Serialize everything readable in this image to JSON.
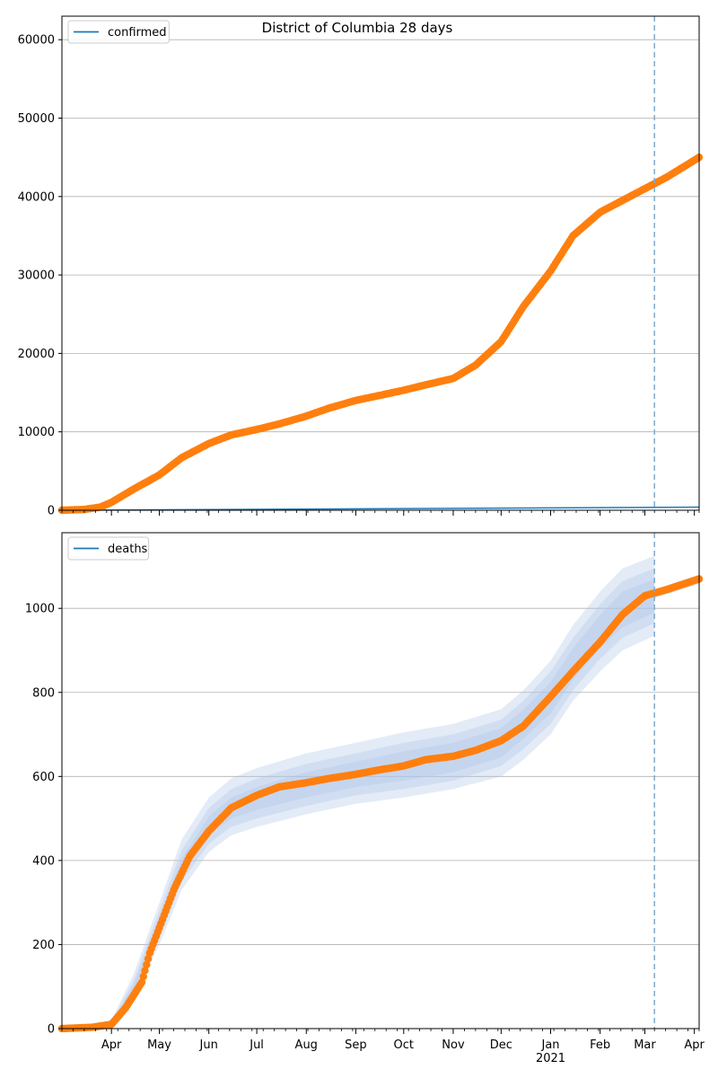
{
  "figure": {
    "title": "District of Columbia 28 days"
  },
  "colors": {
    "observed": "#ff7f0e",
    "model_line": "#1f77b4",
    "band": "#aec7e8",
    "grid": "#b0b0b0",
    "vline": "#7fa9cc"
  },
  "x_axis": {
    "range": [
      "2020-03-01",
      "2021-04-04"
    ],
    "month_ticks": [
      {
        "date": "2020-04-01",
        "label": "Apr",
        "sublabel": ""
      },
      {
        "date": "2020-05-01",
        "label": "May",
        "sublabel": ""
      },
      {
        "date": "2020-06-01",
        "label": "Jun",
        "sublabel": ""
      },
      {
        "date": "2020-07-01",
        "label": "Jul",
        "sublabel": ""
      },
      {
        "date": "2020-08-01",
        "label": "Aug",
        "sublabel": ""
      },
      {
        "date": "2020-09-01",
        "label": "Sep",
        "sublabel": ""
      },
      {
        "date": "2020-10-01",
        "label": "Oct",
        "sublabel": ""
      },
      {
        "date": "2020-11-01",
        "label": "Nov",
        "sublabel": ""
      },
      {
        "date": "2020-12-01",
        "label": "Dec",
        "sublabel": ""
      },
      {
        "date": "2021-01-01",
        "label": "Jan",
        "sublabel": "2021"
      },
      {
        "date": "2021-02-01",
        "label": "Feb",
        "sublabel": ""
      },
      {
        "date": "2021-03-01",
        "label": "Mar",
        "sublabel": ""
      },
      {
        "date": "2021-04-01",
        "label": "Apr",
        "sublabel": ""
      }
    ],
    "forecast_start": "2021-03-07"
  },
  "chart_data": [
    {
      "type": "line",
      "legend": "confirmed",
      "legend_position": "upper-left",
      "grid_y": true,
      "ylim": [
        0,
        63000
      ],
      "yticks": [
        "0",
        "10000",
        "20000",
        "30000",
        "40000",
        "50000",
        "60000"
      ],
      "ytick_values": [
        0,
        10000,
        20000,
        30000,
        40000,
        50000,
        60000
      ],
      "observed": {
        "x": [
          "2020-03-01",
          "2020-03-15",
          "2020-03-25",
          "2020-04-01",
          "2020-04-15",
          "2020-05-01",
          "2020-05-15",
          "2020-06-01",
          "2020-06-15",
          "2020-07-01",
          "2020-07-15",
          "2020-08-01",
          "2020-08-15",
          "2020-09-01",
          "2020-09-15",
          "2020-10-01",
          "2020-10-15",
          "2020-11-01",
          "2020-11-15",
          "2020-12-01",
          "2020-12-15",
          "2021-01-01",
          "2021-01-15",
          "2021-02-01",
          "2021-02-15",
          "2021-03-01",
          "2021-03-15",
          "2021-04-04"
        ],
        "y": [
          0,
          100,
          400,
          1000,
          2700,
          4500,
          6700,
          8500,
          9600,
          10300,
          11000,
          12000,
          13000,
          14000,
          14600,
          15300,
          16000,
          16800,
          18500,
          21500,
          26000,
          30500,
          35000,
          38000,
          39500,
          41000,
          42500,
          45000
        ]
      },
      "model": {
        "x": [
          "2020-03-01",
          "2021-04-04"
        ],
        "y": [
          0,
          400
        ]
      }
    },
    {
      "type": "line",
      "legend": "deaths",
      "legend_position": "upper-left",
      "grid_y": true,
      "ylim": [
        0,
        1180
      ],
      "yticks": [
        "0",
        "200",
        "400",
        "600",
        "800",
        "1000"
      ],
      "ytick_values": [
        0,
        200,
        400,
        600,
        800,
        1000
      ],
      "observed": {
        "x": [
          "2020-03-01",
          "2020-03-20",
          "2020-04-01",
          "2020-04-10",
          "2020-04-20",
          "2020-04-25",
          "2020-05-01",
          "2020-05-10",
          "2020-05-20",
          "2020-06-01",
          "2020-06-15",
          "2020-07-01",
          "2020-07-15",
          "2020-08-01",
          "2020-08-15",
          "2020-09-01",
          "2020-09-15",
          "2020-10-01",
          "2020-10-15",
          "2020-11-01",
          "2020-11-15",
          "2020-12-01",
          "2020-12-15",
          "2021-01-01",
          "2021-01-15",
          "2021-02-01",
          "2021-02-15",
          "2021-03-01",
          "2021-03-15",
          "2021-04-04"
        ],
        "y": [
          0,
          3,
          10,
          50,
          110,
          180,
          240,
          330,
          410,
          470,
          525,
          555,
          575,
          585,
          595,
          605,
          615,
          625,
          640,
          648,
          662,
          685,
          720,
          790,
          850,
          920,
          985,
          1030,
          1045,
          1070
        ]
      },
      "bands": [
        {
          "x": [
            "2020-03-01",
            "2020-04-01",
            "2020-04-15",
            "2020-05-01",
            "2020-05-15",
            "2020-06-01",
            "2020-06-15",
            "2020-07-01",
            "2020-08-01",
            "2020-09-01",
            "2020-10-01",
            "2020-11-01",
            "2020-12-01",
            "2020-12-15",
            "2021-01-01",
            "2021-01-15",
            "2021-02-01",
            "2021-02-15",
            "2021-03-07"
          ],
          "lower": [
            0,
            5,
            70,
            200,
            330,
            420,
            460,
            480,
            510,
            535,
            550,
            570,
            600,
            640,
            700,
            780,
            850,
            900,
            935
          ],
          "upper": [
            0,
            20,
            130,
            300,
            450,
            550,
            595,
            620,
            655,
            680,
            705,
            725,
            760,
            805,
            875,
            960,
            1040,
            1095,
            1125
          ]
        },
        {
          "x": [
            "2020-03-01",
            "2020-04-01",
            "2020-04-15",
            "2020-05-01",
            "2020-05-15",
            "2020-06-01",
            "2020-06-15",
            "2020-07-01",
            "2020-08-01",
            "2020-09-01",
            "2020-10-01",
            "2020-11-01",
            "2020-12-01",
            "2020-12-15",
            "2021-01-01",
            "2021-01-15",
            "2021-02-01",
            "2021-02-15",
            "2021-03-07"
          ],
          "lower": [
            0,
            8,
            80,
            215,
            350,
            440,
            480,
            500,
            530,
            555,
            570,
            590,
            625,
            665,
            725,
            805,
            880,
            930,
            965
          ],
          "upper": [
            0,
            16,
            115,
            280,
            425,
            525,
            570,
            595,
            630,
            655,
            680,
            700,
            735,
            780,
            850,
            930,
            1010,
            1065,
            1095
          ]
        },
        {
          "x": [
            "2020-03-01",
            "2020-04-01",
            "2020-04-15",
            "2020-05-01",
            "2020-05-15",
            "2020-06-01",
            "2020-06-15",
            "2020-07-01",
            "2020-08-01",
            "2020-09-01",
            "2020-10-01",
            "2020-11-01",
            "2020-12-01",
            "2020-12-15",
            "2021-01-01",
            "2021-01-15",
            "2021-02-01",
            "2021-02-15",
            "2021-03-07"
          ],
          "lower": [
            0,
            10,
            90,
            230,
            370,
            460,
            500,
            520,
            550,
            575,
            590,
            610,
            645,
            690,
            750,
            830,
            905,
            955,
            990
          ],
          "upper": [
            0,
            14,
            105,
            265,
            405,
            505,
            550,
            575,
            610,
            635,
            660,
            680,
            715,
            760,
            825,
            905,
            985,
            1040,
            1070
          ]
        }
      ],
      "band_tail": {
        "x": [
          "2021-03-07",
          "2021-04-04"
        ],
        "lower": [
          1025,
          1058
        ],
        "upper": [
          1045,
          1080
        ]
      }
    }
  ]
}
